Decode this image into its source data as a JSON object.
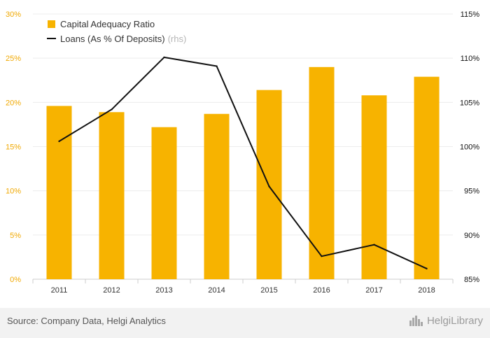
{
  "chart_data": {
    "type": "bar",
    "categories": [
      "2011",
      "2012",
      "2013",
      "2014",
      "2015",
      "2016",
      "2017",
      "2018"
    ],
    "series": [
      {
        "name": "Capital Adequacy Ratio",
        "type": "bar",
        "axis": "left",
        "values": [
          19.6,
          18.9,
          17.2,
          18.7,
          21.4,
          24.0,
          20.8,
          22.9
        ]
      },
      {
        "name": "Loans (As % Of Deposits)",
        "name_suffix": "(rhs)",
        "type": "line",
        "axis": "right",
        "values": [
          100.6,
          104.2,
          110.1,
          109.1,
          95.5,
          87.6,
          88.9,
          86.2
        ]
      }
    ],
    "y_left": {
      "min": 0,
      "max": 30,
      "ticks": [
        "0%",
        "5%",
        "10%",
        "15%",
        "20%",
        "25%",
        "30%"
      ]
    },
    "y_right": {
      "min": 85,
      "max": 115,
      "ticks": [
        "85%",
        "90%",
        "95%",
        "100%",
        "105%",
        "110%",
        "115%"
      ]
    },
    "grid": true,
    "legend_position": "top-left",
    "colors": {
      "bar": "#f7b300",
      "line": "#111111",
      "left_ticks": "#f0a800",
      "right_ticks": "#111111"
    }
  },
  "footer": {
    "source": "Source: Company Data, Helgi Analytics",
    "brand": "HelgiLibrary"
  },
  "icons": {
    "brand_logo": "city-skyline-icon"
  }
}
